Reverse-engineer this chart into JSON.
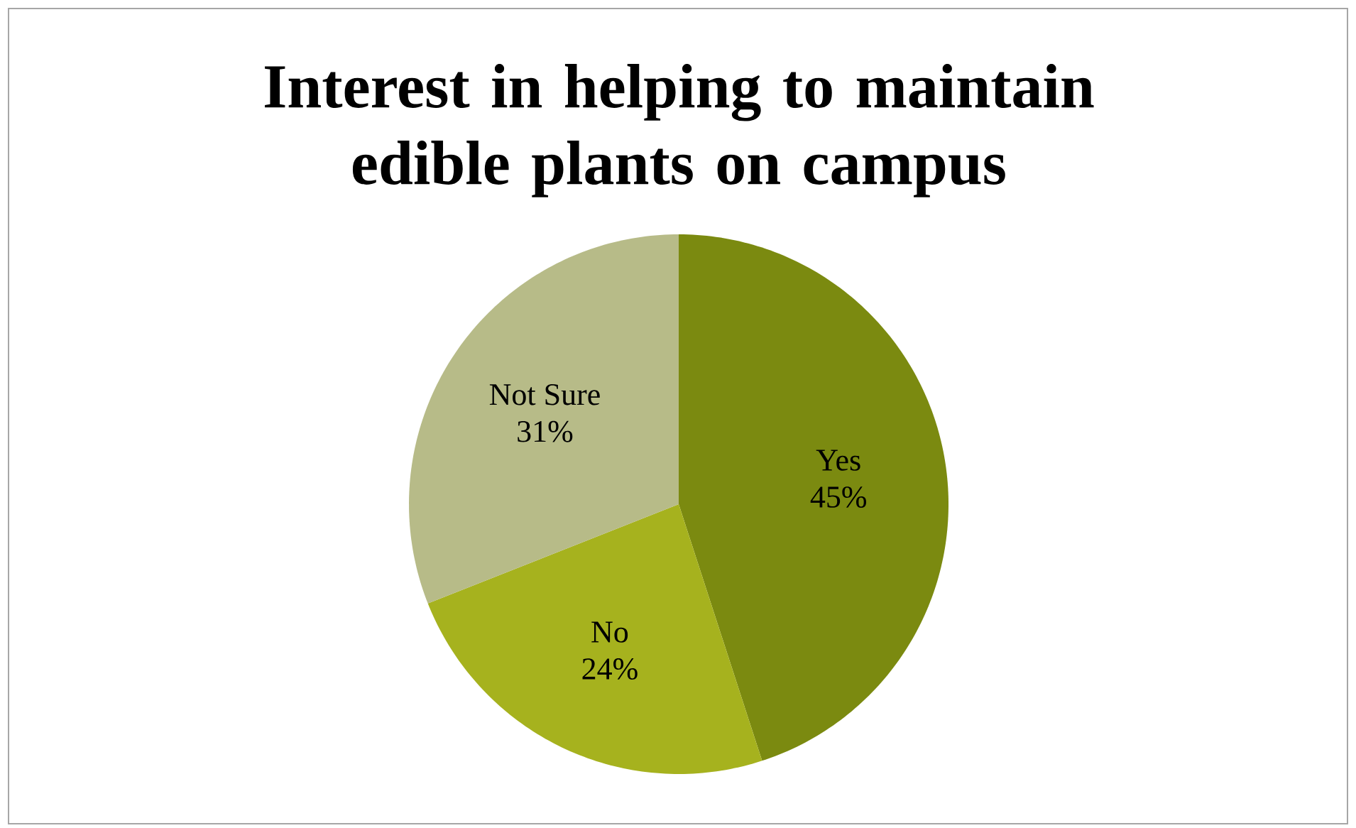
{
  "chart_data": {
    "type": "pie",
    "title": "Interest in helping to maintain edible plants on campus",
    "categories": [
      "Yes",
      "No",
      "Not Sure"
    ],
    "values": [
      45,
      24,
      31
    ],
    "value_labels": [
      "45%",
      "24%",
      "31%"
    ],
    "colors": [
      "#7b8a10",
      "#a6b21e",
      "#b7bb88"
    ]
  }
}
